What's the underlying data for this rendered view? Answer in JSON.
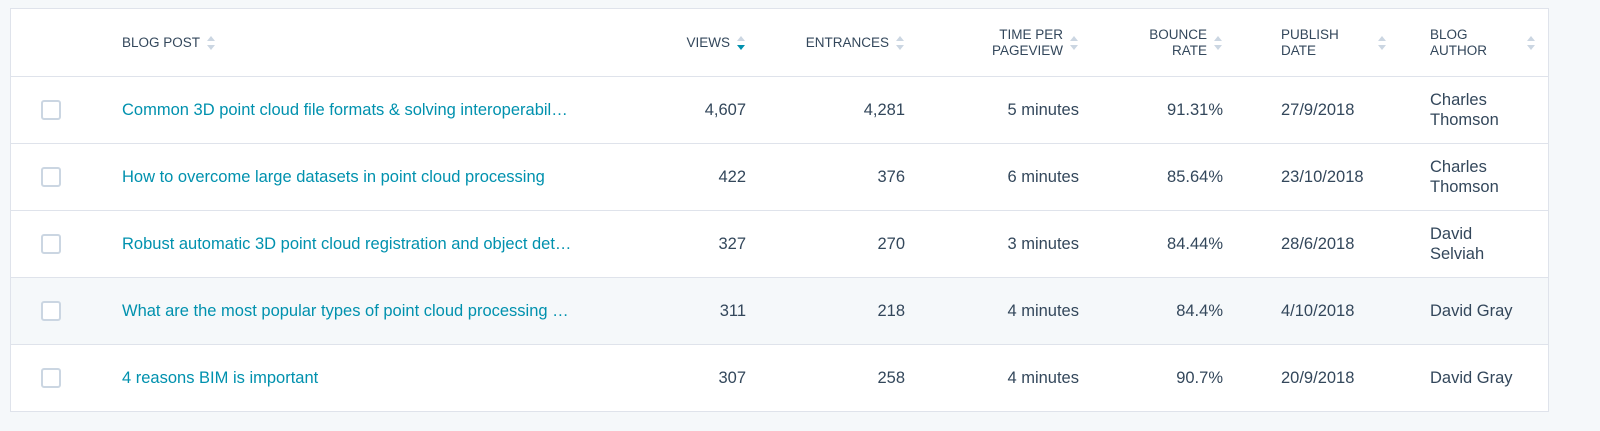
{
  "table": {
    "columns": [
      "BLOG POST",
      "VIEWS",
      "ENTRANCES",
      "TIME PER PAGEVIEW",
      "BOUNCE RATE",
      "PUBLISH DATE",
      "BLOG AUTHOR"
    ],
    "rows": [
      [
        "Common 3D point cloud file formats & solving interoperabil…",
        "4,607",
        "4,281",
        "5 minutes",
        "91.31%",
        "27/9/2018",
        "Charles Thomson"
      ],
      [
        "How to overcome large datasets in point cloud processing",
        "422",
        "376",
        "6 minutes",
        "85.64%",
        "23/10/2018",
        "Charles Thomson"
      ],
      [
        "Robust automatic 3D point cloud registration and object det…",
        "327",
        "270",
        "3 minutes",
        "84.44%",
        "28/6/2018",
        "David Selviah"
      ],
      [
        "What are the most popular types of point cloud processing …",
        "311",
        "218",
        "4 minutes",
        "84.4%",
        "4/10/2018",
        "David Gray"
      ],
      [
        "4 reasons BIM is important",
        "307",
        "258",
        "4 minutes",
        "90.7%",
        "20/9/2018",
        "David Gray"
      ]
    ]
  }
}
